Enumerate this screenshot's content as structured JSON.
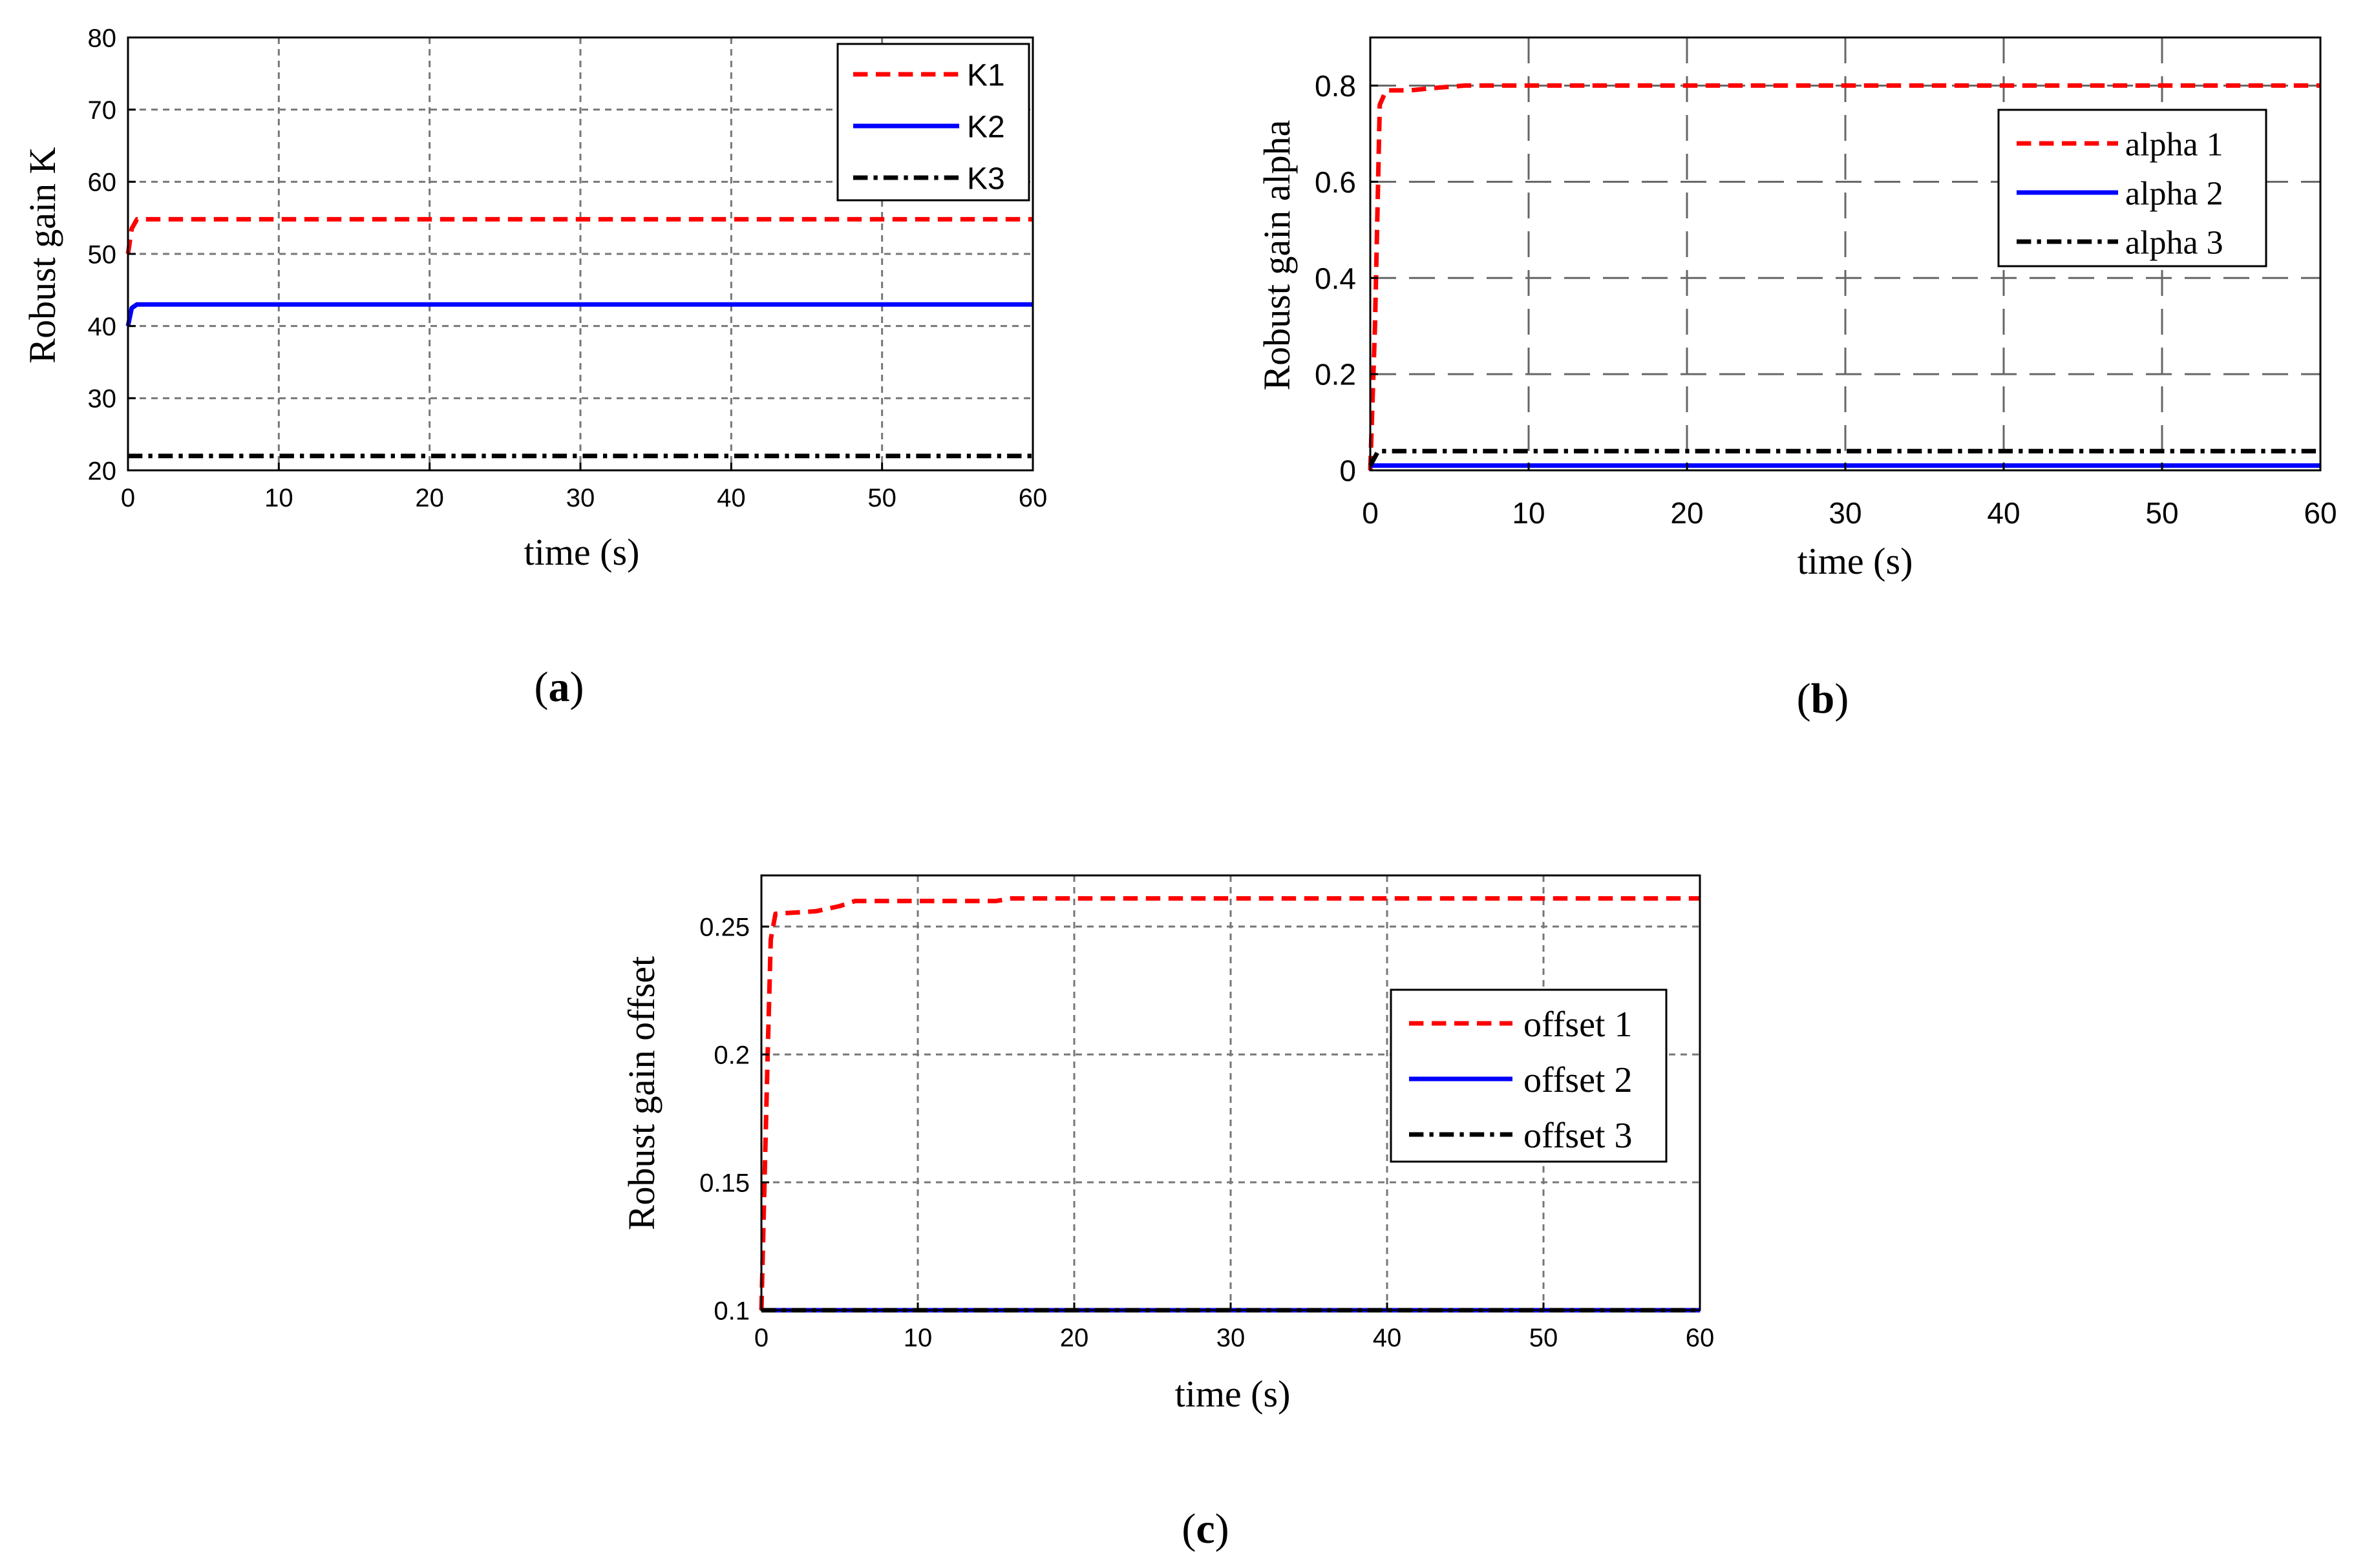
{
  "chart_data": [
    {
      "id": "a",
      "type": "line",
      "caption": "a",
      "title": "",
      "xlabel": "time (s)",
      "ylabel": "Robust gain K",
      "xlim": [
        0,
        60
      ],
      "ylim": [
        20,
        80
      ],
      "xticks": [
        "0",
        "10",
        "20",
        "30",
        "40",
        "50",
        "60"
      ],
      "yticks": [
        "20",
        "30",
        "40",
        "50",
        "60",
        "70",
        "80"
      ],
      "grid": true,
      "legend_position": "top-right",
      "series": [
        {
          "name": "K1",
          "color": "#ff0000",
          "style": "dashed",
          "points": [
            [
              0,
              50
            ],
            [
              0.25,
              53.5
            ],
            [
              0.6,
              54.8
            ],
            [
              60,
              54.8
            ]
          ]
        },
        {
          "name": "K2",
          "color": "#0000ff",
          "style": "solid",
          "points": [
            [
              0,
              40
            ],
            [
              0.25,
              42.5
            ],
            [
              0.6,
              43
            ],
            [
              60,
              43
            ]
          ]
        },
        {
          "name": "K3",
          "color": "#000000",
          "style": "dashdot",
          "points": [
            [
              0,
              22
            ],
            [
              60,
              22
            ]
          ]
        }
      ]
    },
    {
      "id": "b",
      "type": "line",
      "caption": "b",
      "title": "",
      "xlabel": "time (s)",
      "ylabel": "Robust gain alpha",
      "xlim": [
        0,
        60
      ],
      "ylim": [
        0,
        0.9
      ],
      "xticks": [
        "0",
        "10",
        "20",
        "30",
        "40",
        "50",
        "60"
      ],
      "yticks": [
        "0",
        "0.2",
        "0.4",
        "0.6",
        "0.8"
      ],
      "grid": true,
      "legend_position": "top-right",
      "series": [
        {
          "name": "alpha 1",
          "color": "#ff0000",
          "style": "dashed",
          "points": [
            [
              0,
              0
            ],
            [
              0.3,
              0.3
            ],
            [
              0.6,
              0.76
            ],
            [
              1,
              0.79
            ],
            [
              2.5,
              0.79
            ],
            [
              4,
              0.795
            ],
            [
              6,
              0.8
            ],
            [
              60,
              0.8
            ]
          ]
        },
        {
          "name": "alpha 2",
          "color": "#0000ff",
          "style": "solid",
          "points": [
            [
              0,
              0.01
            ],
            [
              60,
              0.01
            ]
          ]
        },
        {
          "name": "alpha 3",
          "color": "#000000",
          "style": "dashdot",
          "points": [
            [
              0,
              0.01
            ],
            [
              0.5,
              0.04
            ],
            [
              60,
              0.04
            ]
          ]
        }
      ]
    },
    {
      "id": "c",
      "type": "line",
      "caption": "c",
      "title": "",
      "xlabel": "time (s)",
      "ylabel": "Robust gain offset",
      "xlim": [
        0,
        60
      ],
      "ylim": [
        0.1,
        0.27
      ],
      "xticks": [
        "0",
        "10",
        "20",
        "30",
        "40",
        "50",
        "60"
      ],
      "yticks": [
        "0.1",
        "0.15",
        "0.2",
        "0.25"
      ],
      "grid": true,
      "legend_position": "center-right",
      "series": [
        {
          "name": "offset 1",
          "color": "#ff0000",
          "style": "dashed",
          "points": [
            [
              0,
              0.1
            ],
            [
              0.2,
              0.15
            ],
            [
              0.4,
              0.2
            ],
            [
              0.6,
              0.245
            ],
            [
              0.9,
              0.255
            ],
            [
              3.5,
              0.256
            ],
            [
              5,
              0.258
            ],
            [
              6,
              0.26
            ],
            [
              15,
              0.26
            ],
            [
              16,
              0.261
            ],
            [
              60,
              0.261
            ]
          ]
        },
        {
          "name": "offset 2",
          "color": "#0000ff",
          "style": "solid",
          "points": [
            [
              0,
              0.1
            ],
            [
              60,
              0.1
            ]
          ]
        },
        {
          "name": "offset 3",
          "color": "#000000",
          "style": "dashdot",
          "points": [
            [
              0,
              0.1
            ],
            [
              60,
              0.1
            ]
          ]
        }
      ]
    }
  ]
}
